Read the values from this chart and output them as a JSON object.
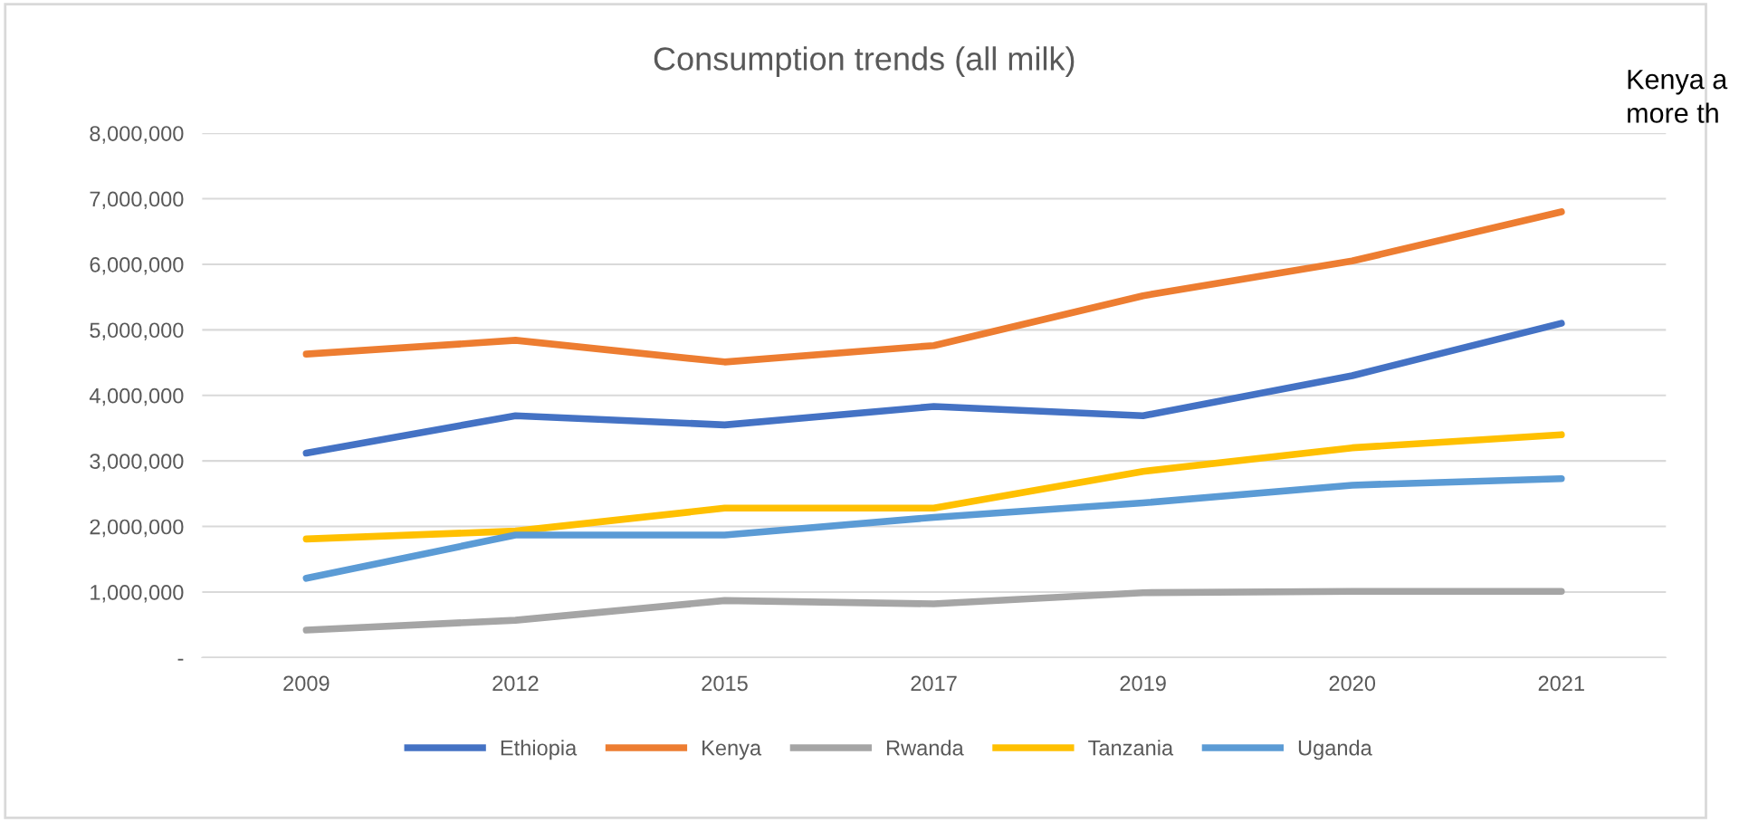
{
  "chart_data": {
    "type": "line",
    "title": "Consumption trends (all milk)",
    "categories": [
      "2009",
      "2012",
      "2015",
      "2017",
      "2019",
      "2020",
      "2021"
    ],
    "series": [
      {
        "name": "Ethiopia",
        "color": "#4472c4",
        "values": [
          3120000,
          3690000,
          3550000,
          3830000,
          3690000,
          4300000,
          5100000
        ]
      },
      {
        "name": "Kenya",
        "color": "#ed7d31",
        "values": [
          4630000,
          4840000,
          4510000,
          4760000,
          5520000,
          6050000,
          6800000
        ]
      },
      {
        "name": "Rwanda",
        "color": "#a5a5a5",
        "values": [
          420000,
          570000,
          870000,
          820000,
          990000,
          1010000,
          1010000
        ]
      },
      {
        "name": "Tanzania",
        "color": "#ffc000",
        "values": [
          1810000,
          1930000,
          2280000,
          2280000,
          2840000,
          3200000,
          3400000
        ]
      },
      {
        "name": "Uganda",
        "color": "#5b9bd5",
        "values": [
          1210000,
          1870000,
          1870000,
          2140000,
          2360000,
          2630000,
          2730000
        ]
      }
    ],
    "ylim": [
      0,
      8000000
    ],
    "yticks": [
      {
        "value": 0,
        "label": "-"
      },
      {
        "value": 1000000,
        "label": "1,000,000"
      },
      {
        "value": 2000000,
        "label": "2,000,000"
      },
      {
        "value": 3000000,
        "label": "3,000,000"
      },
      {
        "value": 4000000,
        "label": "4,000,000"
      },
      {
        "value": 5000000,
        "label": "5,000,000"
      },
      {
        "value": 6000000,
        "label": "6,000,000"
      },
      {
        "value": 7000000,
        "label": "7,000,000"
      },
      {
        "value": 8000000,
        "label": "8,000,000"
      }
    ],
    "grid": "y",
    "legend": "bottom",
    "marker": "none",
    "line_style": "solid",
    "annotations": [
      "Kenya a\nmore th"
    ]
  }
}
